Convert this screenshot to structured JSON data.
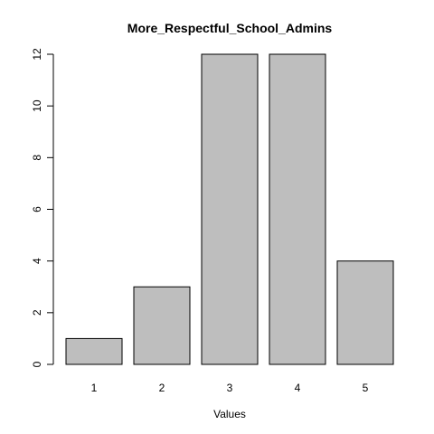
{
  "chart_data": {
    "type": "bar",
    "title": "More_Respectful_School_Admins",
    "xlabel": "Values",
    "ylabel": "",
    "categories": [
      "1",
      "2",
      "3",
      "4",
      "5"
    ],
    "values": [
      1,
      3,
      12,
      12,
      4
    ],
    "ylim": [
      0,
      12
    ],
    "y_ticks": [
      0,
      2,
      4,
      6,
      8,
      10,
      12
    ],
    "grid": false,
    "legend": "none",
    "bar_color": "#bebebe",
    "bar_edge_color": "#000000",
    "background_color": "#ffffff"
  }
}
